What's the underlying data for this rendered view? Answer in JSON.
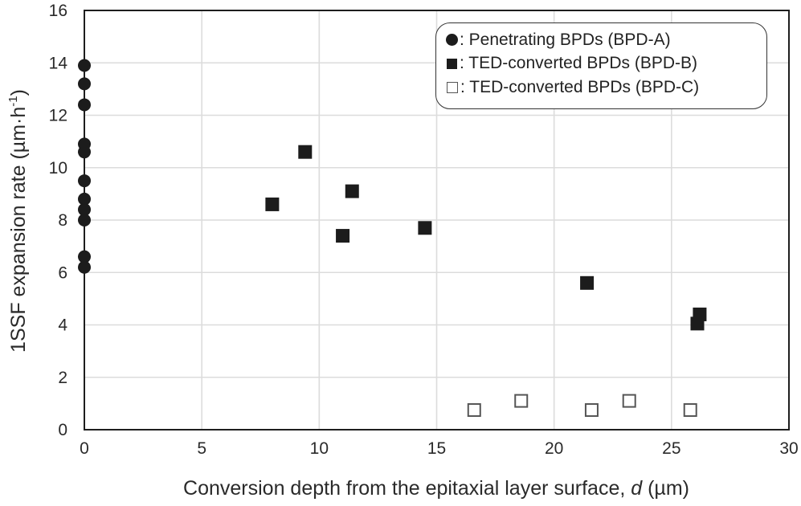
{
  "chart_data": {
    "type": "scatter",
    "title": "",
    "xlabel": "Conversion depth from the epitaxial layer surface, d (µm)",
    "xlabel_parts": [
      "Conversion depth from the epitaxial layer surface, ",
      "d",
      " (µm)"
    ],
    "ylabel": "1SSF expansion rate (µm·h⁻¹)",
    "ylabel_parts": [
      "1SSF expansion rate (µm·h",
      "-1",
      ")"
    ],
    "xlim": [
      0,
      30
    ],
    "ylim": [
      0,
      16
    ],
    "xticks": [
      0,
      5,
      10,
      15,
      20,
      25,
      30
    ],
    "yticks": [
      0,
      2,
      4,
      6,
      8,
      10,
      12,
      14,
      16
    ],
    "grid": true,
    "legend_position": "upper right",
    "series": [
      {
        "name": "Penetrating BPDs (BPD-A)",
        "legend_label": ": Penetrating BPDs (BPD-A)",
        "marker": "filled-circle",
        "color": "#1c1c1c",
        "points": [
          [
            0,
            13.9
          ],
          [
            0,
            13.2
          ],
          [
            0,
            12.4
          ],
          [
            0,
            10.9
          ],
          [
            0,
            10.6
          ],
          [
            0,
            9.5
          ],
          [
            0,
            8.8
          ],
          [
            0,
            8.4
          ],
          [
            0,
            8.0
          ],
          [
            0,
            6.6
          ],
          [
            0,
            6.2
          ]
        ]
      },
      {
        "name": "TED-converted BPDs (BPD-B)",
        "legend_label": ": TED-converted BPDs (BPD-B)",
        "marker": "filled-square",
        "color": "#1c1c1c",
        "points": [
          [
            8.0,
            8.6
          ],
          [
            9.4,
            10.6
          ],
          [
            11.0,
            7.4
          ],
          [
            11.4,
            9.1
          ],
          [
            14.5,
            7.7
          ],
          [
            21.4,
            5.6
          ],
          [
            26.1,
            4.05
          ],
          [
            26.2,
            4.4
          ]
        ]
      },
      {
        "name": "TED-converted BPDs (BPD-C)",
        "legend_label": ": TED-converted BPDs (BPD-C)",
        "marker": "open-square",
        "color": "#555555",
        "points": [
          [
            16.6,
            0.75
          ],
          [
            18.6,
            1.1
          ],
          [
            21.6,
            0.75
          ],
          [
            23.2,
            1.1
          ],
          [
            25.8,
            0.75
          ]
        ]
      }
    ]
  },
  "colors": {
    "axis": "#1e1e1e",
    "grid": "#dcdcdc",
    "marker_fill": "#1c1c1c",
    "open_marker_stroke": "#555555"
  }
}
